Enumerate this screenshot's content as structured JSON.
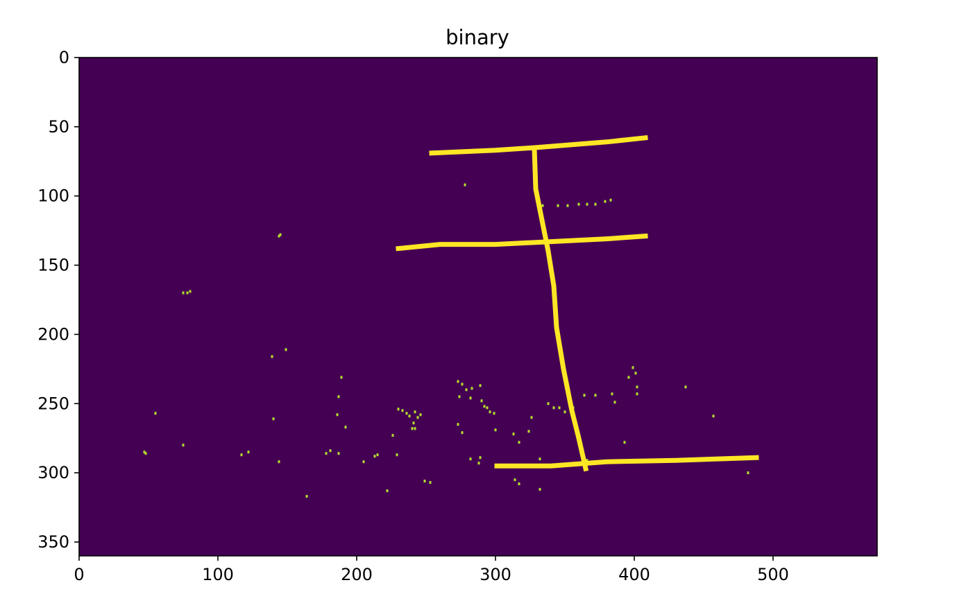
{
  "chart_data": {
    "type": "heatmap",
    "title": "binary",
    "xlabel": "",
    "ylabel": "",
    "xlim": [
      0,
      575
    ],
    "ylim": [
      360,
      0
    ],
    "x_ticks": [
      "0",
      "100",
      "200",
      "300",
      "400",
      "500"
    ],
    "x_tick_values": [
      0,
      100,
      200,
      300,
      400,
      500
    ],
    "y_ticks": [
      "0",
      "50",
      "100",
      "150",
      "200",
      "250",
      "300",
      "350"
    ],
    "y_tick_values": [
      0,
      50,
      100,
      150,
      200,
      250,
      300,
      350
    ],
    "grid": false,
    "colormap": "viridis",
    "colors": {
      "background_value_0": "#440154",
      "foreground_value_1": "#fde725",
      "noise": "#b5de2b"
    },
    "strokes": [
      {
        "name": "top-bar",
        "points": [
          [
            254,
            69
          ],
          [
            300,
            67
          ],
          [
            330,
            65
          ],
          [
            380,
            61
          ],
          [
            408,
            58
          ]
        ]
      },
      {
        "name": "middle-bar",
        "points": [
          [
            230,
            138
          ],
          [
            260,
            135
          ],
          [
            300,
            135
          ],
          [
            340,
            133
          ],
          [
            380,
            131
          ],
          [
            408,
            129
          ]
        ]
      },
      {
        "name": "bottom-bar",
        "points": [
          [
            301,
            295
          ],
          [
            340,
            295
          ],
          [
            380,
            292
          ],
          [
            430,
            291
          ],
          [
            488,
            289
          ]
        ]
      },
      {
        "name": "vertical-stroke",
        "points": [
          [
            328,
            66
          ],
          [
            329,
            95
          ],
          [
            333,
            115
          ],
          [
            338,
            140
          ],
          [
            342,
            165
          ],
          [
            344,
            195
          ],
          [
            349,
            225
          ],
          [
            355,
            255
          ],
          [
            360,
            275
          ],
          [
            365,
            297
          ]
        ]
      }
    ],
    "noise_points": [
      [
        145,
        128
      ],
      [
        144,
        129
      ],
      [
        75,
        170
      ],
      [
        78,
        170
      ],
      [
        80,
        169
      ],
      [
        139,
        216
      ],
      [
        149,
        211
      ],
      [
        55,
        257
      ],
      [
        47,
        285
      ],
      [
        48,
        286
      ],
      [
        75,
        280
      ],
      [
        117,
        287
      ],
      [
        122,
        285
      ],
      [
        144,
        292
      ],
      [
        164,
        317
      ],
      [
        140,
        261
      ],
      [
        187,
        245
      ],
      [
        189,
        231
      ],
      [
        181,
        284
      ],
      [
        178,
        286
      ],
      [
        187,
        286
      ],
      [
        186,
        258
      ],
      [
        192,
        267
      ],
      [
        205,
        292
      ],
      [
        213,
        288
      ],
      [
        215,
        287
      ],
      [
        222,
        313
      ],
      [
        230,
        254
      ],
      [
        233,
        255
      ],
      [
        236,
        257
      ],
      [
        238,
        259
      ],
      [
        242,
        256
      ],
      [
        244,
        260
      ],
      [
        241,
        264
      ],
      [
        240,
        268
      ],
      [
        226,
        273
      ],
      [
        246,
        258
      ],
      [
        242,
        268
      ],
      [
        229,
        287
      ],
      [
        273,
        234
      ],
      [
        276,
        236
      ],
      [
        279,
        240
      ],
      [
        283,
        239
      ],
      [
        289,
        237
      ],
      [
        282,
        246
      ],
      [
        274,
        245
      ],
      [
        290,
        248
      ],
      [
        292,
        252
      ],
      [
        294,
        253
      ],
      [
        296,
        256
      ],
      [
        299,
        257
      ],
      [
        273,
        265
      ],
      [
        276,
        271
      ],
      [
        282,
        290
      ],
      [
        288,
        293
      ],
      [
        289,
        289
      ],
      [
        300,
        269
      ],
      [
        313,
        272
      ],
      [
        317,
        278
      ],
      [
        324,
        270
      ],
      [
        314,
        305
      ],
      [
        317,
        308
      ],
      [
        326,
        260
      ],
      [
        332,
        312
      ],
      [
        332,
        290
      ],
      [
        249,
        306
      ],
      [
        253,
        307
      ],
      [
        334,
        107
      ],
      [
        345,
        107
      ],
      [
        352,
        107
      ],
      [
        360,
        106
      ],
      [
        366,
        106
      ],
      [
        372,
        106
      ],
      [
        379,
        104
      ],
      [
        383,
        103
      ],
      [
        278,
        92
      ],
      [
        338,
        250
      ],
      [
        342,
        253
      ],
      [
        346,
        253
      ],
      [
        350,
        256
      ],
      [
        356,
        253
      ],
      [
        364,
        244
      ],
      [
        372,
        244
      ],
      [
        384,
        243
      ],
      [
        386,
        249
      ],
      [
        396,
        231
      ],
      [
        399,
        224
      ],
      [
        401,
        228
      ],
      [
        402,
        238
      ],
      [
        402,
        243
      ],
      [
        393,
        278
      ],
      [
        437,
        238
      ],
      [
        457,
        259
      ],
      [
        482,
        300
      ],
      [
        363,
        285
      ],
      [
        366,
        291
      ]
    ]
  }
}
